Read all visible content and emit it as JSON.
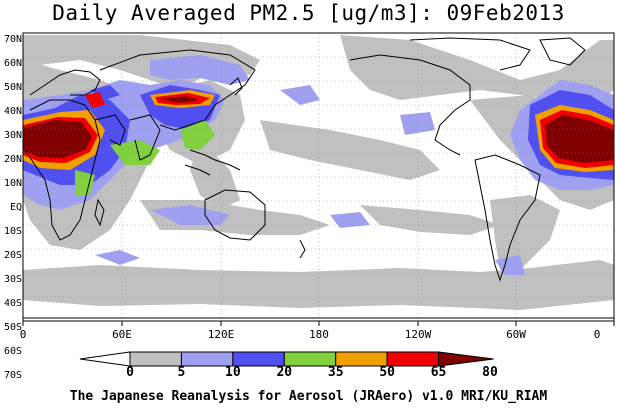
{
  "title": "Daily Averaged PM2.5 [ug/m3]: 09Feb2013",
  "footer": "The Japanese Reanalysis for Aerosol (JRAero) v1.0 MRI/KU_RIAM",
  "lat_labels": [
    "70N",
    "60N",
    "50N",
    "40N",
    "30N",
    "20N",
    "10N",
    "EQ",
    "10S",
    "20S",
    "30S",
    "40S",
    "50S",
    "60S",
    "70S"
  ],
  "lon_labels": [
    "0",
    "60E",
    "120E",
    "180",
    "120W",
    "60W",
    "0"
  ],
  "colorbar": {
    "levels": [
      "0",
      "5",
      "10",
      "20",
      "35",
      "50",
      "65",
      "80"
    ],
    "colors": [
      "#ffffff",
      "#c0c0c0",
      "#a0a0f0",
      "#5050f0",
      "#80d040",
      "#f0a000",
      "#f00000",
      "#800000"
    ]
  },
  "colors": {
    "ocean_background": "#ffffff",
    "coastline": "#000000",
    "grid": "#888888"
  }
}
